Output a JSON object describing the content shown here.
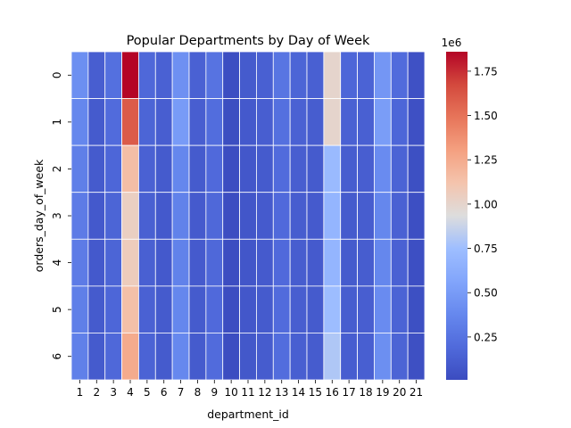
{
  "chart_data": {
    "type": "heatmap",
    "title": "Popular Departments by Day of Week",
    "xlabel": "department_id",
    "ylabel": "orders_day_of_week",
    "x_categories": [
      "1",
      "2",
      "3",
      "4",
      "5",
      "6",
      "7",
      "8",
      "9",
      "10",
      "11",
      "12",
      "13",
      "14",
      "15",
      "16",
      "17",
      "18",
      "19",
      "20",
      "21"
    ],
    "y_categories": [
      "0",
      "1",
      "2",
      "3",
      "4",
      "5",
      "6"
    ],
    "colormap": "coolwarm",
    "color_range": [
      8000,
      1860000
    ],
    "colorbar_ticks": [
      0.25,
      0.5,
      0.75,
      1.0,
      1.25,
      1.5,
      1.75
    ],
    "colorbar_tick_labels": [
      "0.25",
      "0.50",
      "0.75",
      "1.00",
      "1.25",
      "1.50",
      "1.75"
    ],
    "colorbar_offset_label": "1e6",
    "values": [
      [
        420000,
        120000,
        230000,
        1860000,
        180000,
        140000,
        430000,
        140000,
        250000,
        20000,
        100000,
        130000,
        260000,
        160000,
        130000,
        1000000,
        170000,
        150000,
        470000,
        200000,
        40000
      ],
      [
        370000,
        100000,
        200000,
        1600000,
        160000,
        120000,
        500000,
        120000,
        210000,
        18000,
        90000,
        120000,
        230000,
        140000,
        110000,
        1000000,
        140000,
        130000,
        510000,
        170000,
        35000
      ],
      [
        320000,
        100000,
        170000,
        1150000,
        140000,
        100000,
        370000,
        100000,
        190000,
        15000,
        75000,
        100000,
        200000,
        120000,
        100000,
        720000,
        110000,
        120000,
        400000,
        150000,
        30000
      ],
      [
        300000,
        90000,
        160000,
        1040000,
        130000,
        90000,
        340000,
        95000,
        180000,
        14000,
        70000,
        95000,
        190000,
        110000,
        95000,
        680000,
        100000,
        110000,
        370000,
        140000,
        28000
      ],
      [
        300000,
        90000,
        160000,
        1060000,
        130000,
        90000,
        340000,
        95000,
        180000,
        14000,
        70000,
        95000,
        190000,
        110000,
        95000,
        680000,
        100000,
        110000,
        370000,
        140000,
        28000
      ],
      [
        320000,
        100000,
        170000,
        1140000,
        140000,
        100000,
        370000,
        100000,
        190000,
        15000,
        75000,
        100000,
        200000,
        120000,
        100000,
        740000,
        110000,
        120000,
        400000,
        150000,
        30000
      ],
      [
        330000,
        100000,
        180000,
        1250000,
        150000,
        100000,
        380000,
        100000,
        200000,
        16000,
        80000,
        105000,
        210000,
        125000,
        105000,
        800000,
        115000,
        125000,
        420000,
        155000,
        32000
      ]
    ]
  }
}
